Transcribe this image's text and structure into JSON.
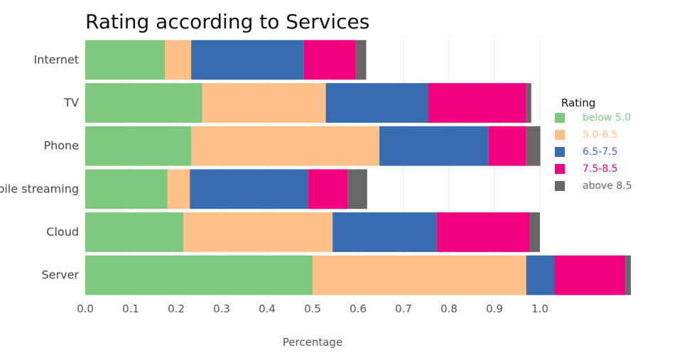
{
  "chart_data": {
    "type": "bar",
    "orientation": "horizontal",
    "stacked": true,
    "title": "Rating according to Services",
    "xlabel": "Percentage",
    "ylabel": "",
    "xlim": [
      0,
      1.2
    ],
    "x_ticks": [
      0.0,
      0.1,
      0.2,
      0.3,
      0.4,
      0.5,
      0.6,
      0.7,
      0.8,
      0.9,
      1.0
    ],
    "x_tick_labels": [
      "0.0",
      "0.1",
      "0.2",
      "0.3",
      "0.4",
      "0.5",
      "0.6",
      "0.7",
      "0.8",
      "0.9",
      "1.0"
    ],
    "categories": [
      "Internet",
      "TV",
      "Phone",
      "Mobile streaming",
      "Cloud",
      "Server"
    ],
    "legend_title": "Rating",
    "legend_position": "right",
    "grid": true,
    "series": [
      {
        "name": "below 5.0",
        "color": "#7fc97f",
        "values": [
          0.175,
          0.257,
          0.233,
          0.181,
          0.216,
          0.5
        ]
      },
      {
        "name": "5.0-6.5",
        "color": "#fdc086",
        "values": [
          0.058,
          0.272,
          0.414,
          0.049,
          0.328,
          0.47
        ]
      },
      {
        "name": "6.5-7.5",
        "color": "#386cb0",
        "values": [
          0.248,
          0.225,
          0.24,
          0.26,
          0.229,
          0.062
        ]
      },
      {
        "name": "7.5-8.5",
        "color": "#f0027f",
        "values": [
          0.114,
          0.216,
          0.083,
          0.087,
          0.205,
          0.156
        ]
      },
      {
        "name": "above 8.5",
        "color": "#666666",
        "values": [
          0.023,
          0.011,
          0.031,
          0.043,
          0.022,
          0.012
        ]
      }
    ]
  }
}
